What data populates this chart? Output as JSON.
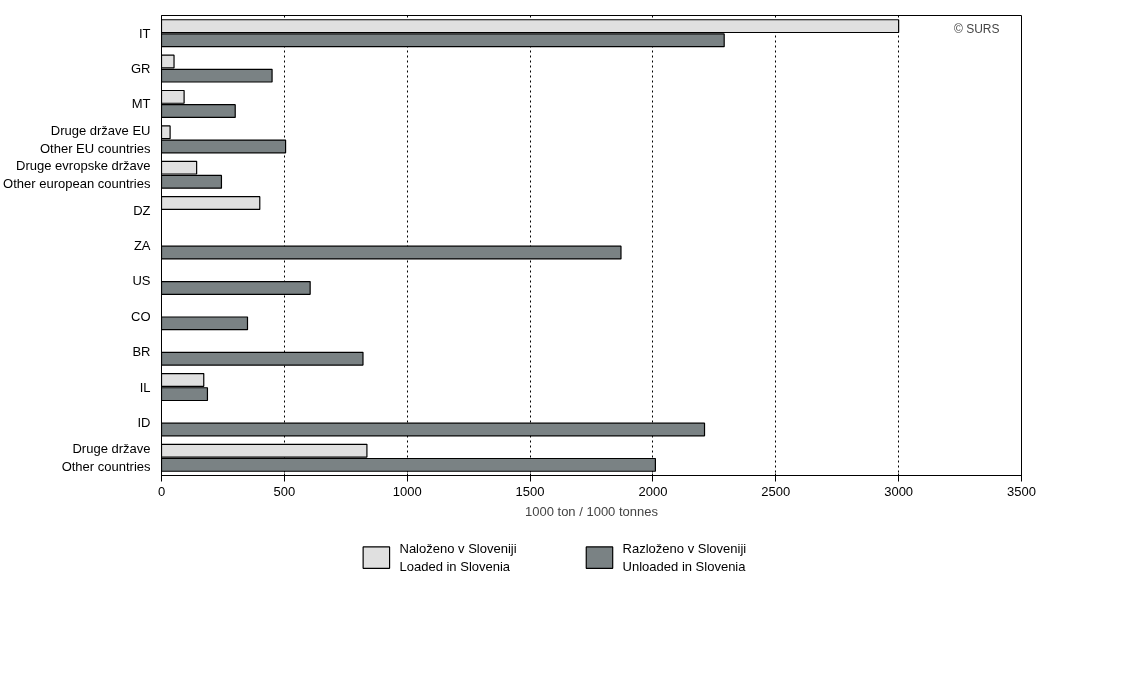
{
  "chart_data": {
    "type": "bar",
    "orientation": "horizontal",
    "categories": [
      "IT",
      "GR",
      "MT",
      "Druge države EU\nOther EU countries",
      "Druge evropske države\nOther european countries",
      "DZ",
      "ZA",
      "US",
      "CO",
      "BR",
      "IL",
      "ID",
      "Druge države\nOther countries"
    ],
    "series": [
      {
        "name": "Naloženo v Sloveniji\nLoaded in Slovenia",
        "color": "#e0e0e0",
        "values": [
          3000,
          51,
          92,
          35,
          143,
          400,
          null,
          null,
          null,
          null,
          172,
          null,
          836
        ]
      },
      {
        "name": "Razloženo v Sloveniji\nUnloaded in Slovenia",
        "color": "#7a8284",
        "values": [
          2290,
          450,
          300,
          505,
          244,
          null,
          1870,
          605,
          350,
          820,
          187,
          2210,
          2010
        ]
      }
    ],
    "xlabel": "1000 ton / 1000 tonnes",
    "xlim": [
      0,
      3500
    ],
    "xticks": [
      0,
      500,
      1000,
      1500,
      2000,
      2500,
      3000,
      3500
    ],
    "grid": "x",
    "legend": "bottom",
    "annotations": [
      "© SURS"
    ]
  }
}
